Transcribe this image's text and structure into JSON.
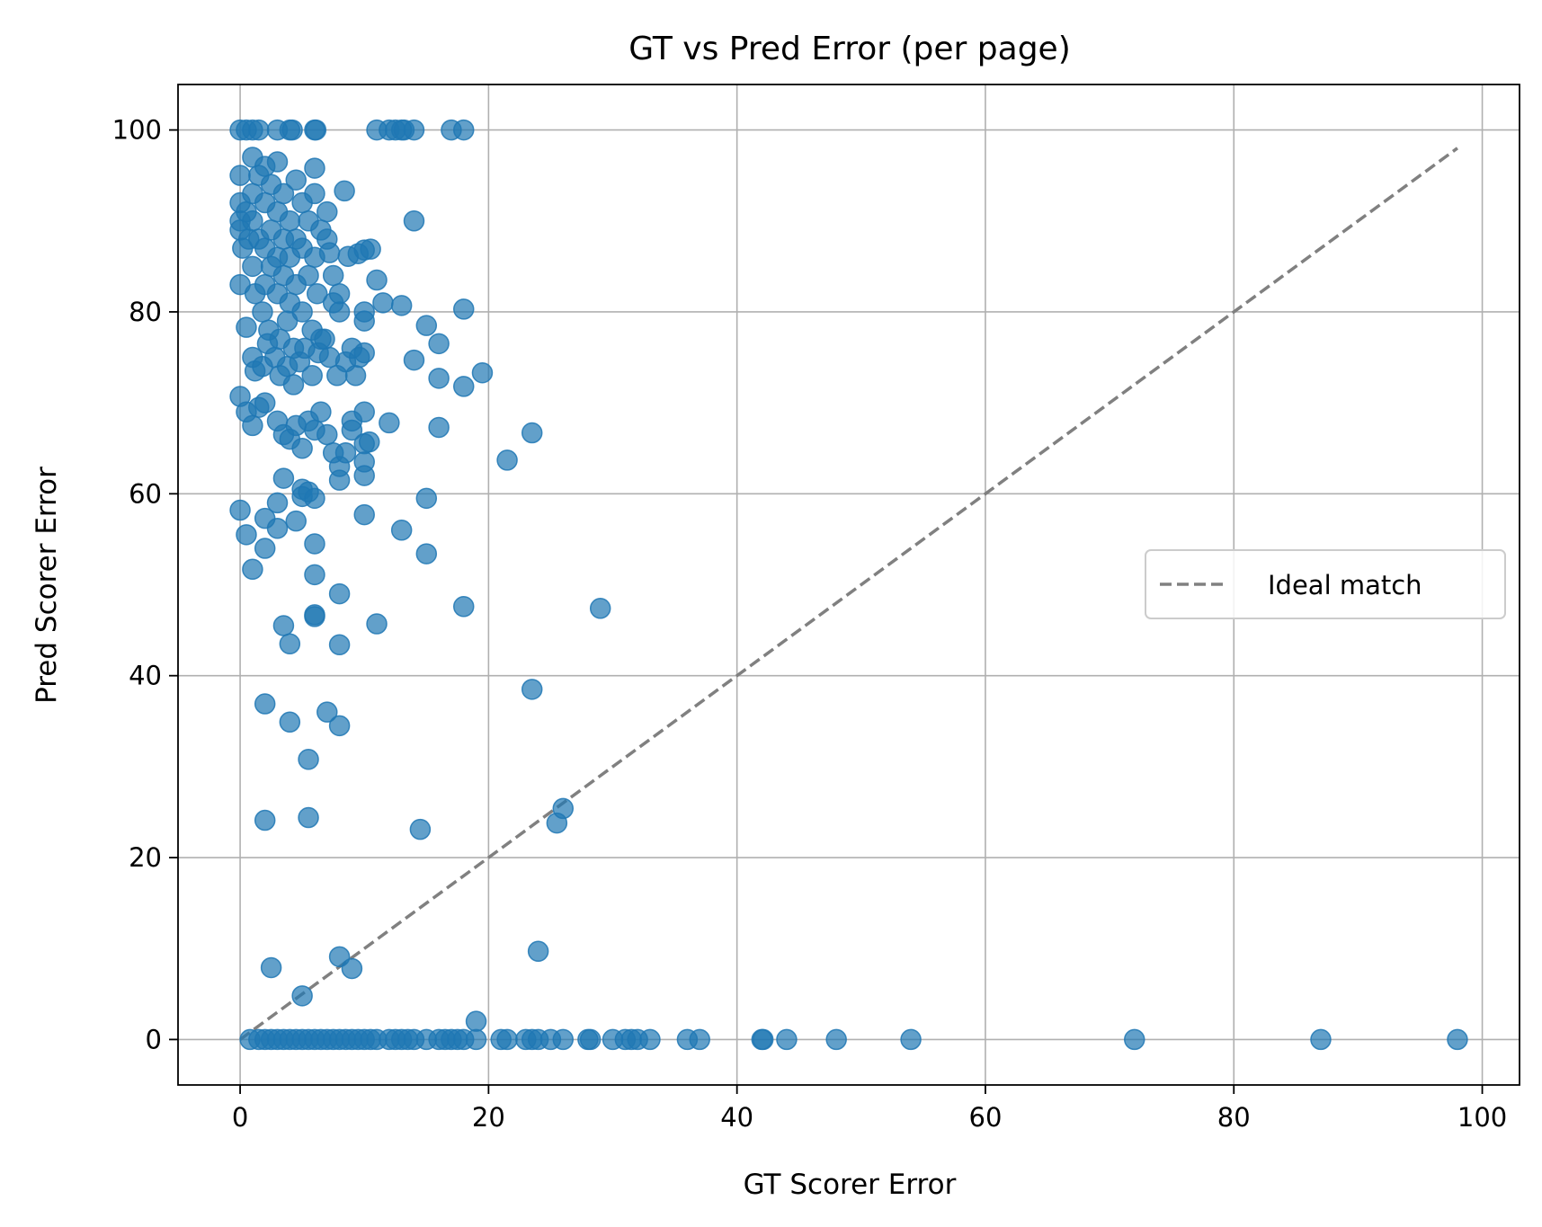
{
  "chart_data": {
    "type": "scatter",
    "title": "GT vs Pred Error (per page)",
    "xlabel": "GT Scorer Error",
    "ylabel": "Pred Scorer Error",
    "xlim": [
      -5,
      103
    ],
    "ylim": [
      -5,
      105
    ],
    "xticks": [
      0,
      20,
      40,
      60,
      80,
      100
    ],
    "yticks": [
      0,
      20,
      40,
      60,
      80,
      100
    ],
    "grid": true,
    "legend": {
      "placement": "center-right",
      "entries": [
        {
          "label": "Ideal match",
          "style": "dashed",
          "color": "#808080"
        }
      ]
    },
    "point_color": "#1f77b4",
    "point_alpha": 0.7,
    "ideal_line": {
      "from": [
        0,
        0
      ],
      "to": [
        98,
        98
      ],
      "color": "#808080"
    },
    "series": [
      {
        "points": [
          [
            0,
            100
          ],
          [
            0.5,
            100
          ],
          [
            1,
            100
          ],
          [
            1.5,
            100
          ],
          [
            3,
            100
          ],
          [
            4,
            100
          ],
          [
            4.2,
            100
          ],
          [
            6,
            100
          ],
          [
            6.1,
            100
          ],
          [
            11,
            100
          ],
          [
            12,
            100
          ],
          [
            12.5,
            100
          ],
          [
            13,
            100
          ],
          [
            13.2,
            100
          ],
          [
            14,
            100
          ],
          [
            17,
            100
          ],
          [
            18,
            100
          ],
          [
            0,
            95
          ],
          [
            0,
            92
          ],
          [
            0,
            90
          ],
          [
            0,
            89
          ],
          [
            0.2,
            87
          ],
          [
            0,
            83
          ],
          [
            0.5,
            91
          ],
          [
            0.7,
            88
          ],
          [
            1,
            97
          ],
          [
            1,
            93
          ],
          [
            1,
            90
          ],
          [
            1,
            85
          ],
          [
            1.2,
            82
          ],
          [
            1.5,
            95
          ],
          [
            1.5,
            88
          ],
          [
            1.8,
            80
          ],
          [
            2,
            96
          ],
          [
            2,
            92
          ],
          [
            2,
            87
          ],
          [
            2,
            83
          ],
          [
            2.3,
            78
          ],
          [
            2.5,
            94
          ],
          [
            2.5,
            89
          ],
          [
            2.5,
            85
          ],
          [
            3,
            96.5
          ],
          [
            3,
            91
          ],
          [
            3,
            86
          ],
          [
            3,
            82
          ],
          [
            3.2,
            77
          ],
          [
            3.5,
            93
          ],
          [
            3.5,
            88
          ],
          [
            3.5,
            84
          ],
          [
            3.8,
            79
          ],
          [
            4,
            90
          ],
          [
            4,
            86
          ],
          [
            4,
            81
          ],
          [
            4.3,
            76
          ],
          [
            4.5,
            94.5
          ],
          [
            4.5,
            88
          ],
          [
            4.5,
            83
          ],
          [
            5,
            92
          ],
          [
            5,
            87
          ],
          [
            5,
            80
          ],
          [
            5.5,
            90
          ],
          [
            5.5,
            84
          ],
          [
            5.8,
            78
          ],
          [
            6,
            95.8
          ],
          [
            6,
            93
          ],
          [
            6,
            86
          ],
          [
            6.2,
            82
          ],
          [
            6.5,
            89
          ],
          [
            6.5,
            77
          ],
          [
            7,
            91
          ],
          [
            7,
            88
          ],
          [
            7.2,
            86.5
          ],
          [
            7.5,
            84
          ],
          [
            7.5,
            81
          ],
          [
            8,
            82
          ],
          [
            8,
            80
          ],
          [
            8.4,
            93.3
          ],
          [
            8.7,
            86.1
          ],
          [
            9.5,
            86.4
          ],
          [
            10,
            86.8
          ],
          [
            10.5,
            86.9
          ],
          [
            11,
            83.5
          ],
          [
            11.5,
            81
          ],
          [
            13,
            80.7
          ],
          [
            14,
            90
          ],
          [
            18,
            80.3
          ],
          [
            0.5,
            78.3
          ],
          [
            1,
            75
          ],
          [
            1.2,
            73.5
          ],
          [
            1.8,
            74
          ],
          [
            2.2,
            76.5
          ],
          [
            2.8,
            75
          ],
          [
            3.2,
            73
          ],
          [
            3.8,
            74
          ],
          [
            4.3,
            72
          ],
          [
            4.8,
            74.5
          ],
          [
            5.2,
            76
          ],
          [
            5.8,
            73
          ],
          [
            6.3,
            75.5
          ],
          [
            6.8,
            77
          ],
          [
            7.2,
            75
          ],
          [
            7.8,
            73
          ],
          [
            8.5,
            74.5
          ],
          [
            9,
            76
          ],
          [
            9.3,
            73
          ],
          [
            9.6,
            75
          ],
          [
            10,
            75.5
          ],
          [
            10,
            80
          ],
          [
            10,
            79
          ],
          [
            14,
            74.7
          ],
          [
            15,
            78.5
          ],
          [
            16,
            76.5
          ],
          [
            16,
            72.7
          ],
          [
            18,
            71.8
          ],
          [
            19.5,
            73.3
          ],
          [
            0,
            70.7
          ],
          [
            0.5,
            69
          ],
          [
            1,
            67.5
          ],
          [
            1.5,
            69.5
          ],
          [
            2,
            70
          ],
          [
            3,
            68
          ],
          [
            3.5,
            66.5
          ],
          [
            4,
            66
          ],
          [
            4.5,
            67.5
          ],
          [
            5,
            65
          ],
          [
            5.5,
            68
          ],
          [
            6,
            67
          ],
          [
            6.5,
            69
          ],
          [
            7,
            66.5
          ],
          [
            7.5,
            64.5
          ],
          [
            8,
            63
          ],
          [
            8,
            61.5
          ],
          [
            8.5,
            64.5
          ],
          [
            9,
            68
          ],
          [
            9,
            67
          ],
          [
            10,
            69
          ],
          [
            10,
            65.5
          ],
          [
            10,
            63.5
          ],
          [
            10,
            62
          ],
          [
            10.4,
            65.7
          ],
          [
            12,
            67.8
          ],
          [
            16,
            67.3
          ],
          [
            21.5,
            63.7
          ],
          [
            23.5,
            66.7
          ],
          [
            0,
            58.2
          ],
          [
            0.5,
            55.5
          ],
          [
            1,
            51.7
          ],
          [
            2,
            57.3
          ],
          [
            2,
            54
          ],
          [
            3,
            59
          ],
          [
            3,
            56.2
          ],
          [
            3.5,
            61.7
          ],
          [
            4.5,
            57
          ],
          [
            5,
            60.5
          ],
          [
            5,
            59.7
          ],
          [
            5.5,
            60.2
          ],
          [
            6,
            59.5
          ],
          [
            6,
            54.5
          ],
          [
            6,
            51.1
          ],
          [
            10,
            57.7
          ],
          [
            13,
            56
          ],
          [
            15,
            59.5
          ],
          [
            15,
            53.4
          ],
          [
            3.5,
            45.5
          ],
          [
            4,
            43.5
          ],
          [
            6,
            46.5
          ],
          [
            6,
            46.7
          ],
          [
            8,
            49
          ],
          [
            8,
            43.4
          ],
          [
            11,
            45.7
          ],
          [
            18,
            47.6
          ],
          [
            29,
            47.4
          ],
          [
            2,
            36.9
          ],
          [
            4,
            34.9
          ],
          [
            5.5,
            30.8
          ],
          [
            7,
            36
          ],
          [
            8,
            34.5
          ],
          [
            23.5,
            38.5
          ],
          [
            2,
            24.1
          ],
          [
            5.5,
            24.4
          ],
          [
            14.5,
            23.1
          ],
          [
            25.5,
            23.8
          ],
          [
            26,
            25.4
          ],
          [
            2.5,
            7.9
          ],
          [
            5,
            4.8
          ],
          [
            8,
            9.1
          ],
          [
            9,
            7.8
          ],
          [
            24,
            9.7
          ],
          [
            19,
            2
          ],
          [
            0.8,
            0
          ],
          [
            1.5,
            0
          ],
          [
            2,
            0
          ],
          [
            2.5,
            0
          ],
          [
            3,
            0
          ],
          [
            3.5,
            0
          ],
          [
            4,
            0
          ],
          [
            4.5,
            0
          ],
          [
            5,
            0
          ],
          [
            5.5,
            0
          ],
          [
            6,
            0
          ],
          [
            6.5,
            0
          ],
          [
            7,
            0
          ],
          [
            7.5,
            0
          ],
          [
            8,
            0
          ],
          [
            8.5,
            0
          ],
          [
            9,
            0
          ],
          [
            9.5,
            0
          ],
          [
            10,
            0
          ],
          [
            10.5,
            0
          ],
          [
            11,
            0
          ],
          [
            12,
            0
          ],
          [
            12.5,
            0
          ],
          [
            13,
            0
          ],
          [
            13.5,
            0
          ],
          [
            14,
            0
          ],
          [
            15,
            0
          ],
          [
            16,
            0
          ],
          [
            16.5,
            0
          ],
          [
            17,
            0
          ],
          [
            17.5,
            0
          ],
          [
            18,
            0
          ],
          [
            19,
            0
          ],
          [
            21,
            0
          ],
          [
            21.5,
            0
          ],
          [
            23,
            0
          ],
          [
            23.5,
            0
          ],
          [
            24,
            0
          ],
          [
            25,
            0
          ],
          [
            26,
            0
          ],
          [
            28,
            0
          ],
          [
            28.2,
            0
          ],
          [
            30,
            0
          ],
          [
            31,
            0
          ],
          [
            31.5,
            0
          ],
          [
            32,
            0
          ],
          [
            33,
            0
          ],
          [
            36,
            0
          ],
          [
            37,
            0
          ],
          [
            42,
            0
          ],
          [
            42.1,
            0
          ],
          [
            44,
            0
          ],
          [
            48,
            0
          ],
          [
            54,
            0
          ],
          [
            72,
            0
          ],
          [
            87,
            0
          ],
          [
            98,
            0
          ]
        ]
      }
    ]
  }
}
